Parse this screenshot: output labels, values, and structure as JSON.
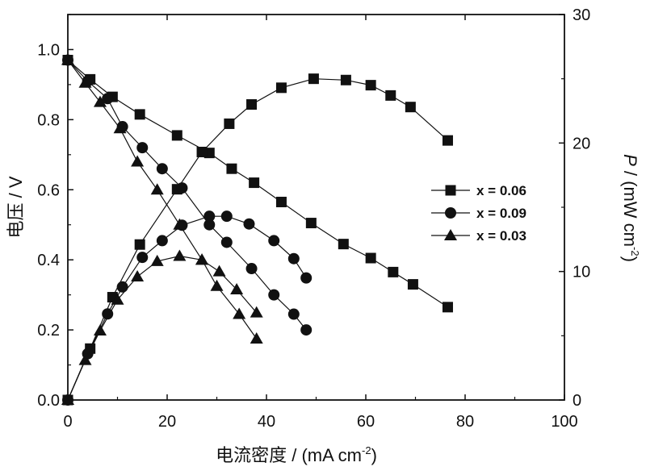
{
  "chart_data": {
    "type": "line",
    "xlabel": "电流密度 / (mA cm",
    "xlabel_sup": "-2",
    "xlabel_suffix": ")",
    "ylabel_left": "电压 / V",
    "ylabel_right_italic": "P",
    "ylabel_right": " / (mW cm",
    "ylabel_right_sup": "-2",
    "ylabel_right_suffix": ")",
    "xlim": [
      0,
      100
    ],
    "ylim_left": [
      0,
      1.1
    ],
    "ylim_right": [
      0,
      30
    ],
    "x_ticks": [
      0,
      20,
      40,
      60,
      80,
      100
    ],
    "x_tick_labels": [
      "0",
      "20",
      "40",
      "60",
      "80",
      "100"
    ],
    "y_left_ticks": [
      0.0,
      0.2,
      0.4,
      0.6,
      0.8,
      1.0
    ],
    "y_left_tick_labels": [
      "0.0",
      "0.2",
      "0.4",
      "0.6",
      "0.8",
      "1.0"
    ],
    "y_right_ticks": [
      0,
      10,
      20,
      30
    ],
    "y_right_tick_labels": [
      "0",
      "10",
      "20",
      "30"
    ],
    "grid": false,
    "legend_position": "right",
    "series": [
      {
        "name": "x = 0.06",
        "marker": "square",
        "voltage": {
          "x": [
            0,
            4.5,
            9,
            14.5,
            22,
            28.5,
            33,
            37.5,
            43,
            49,
            55.5,
            61,
            65.5,
            69.5,
            76.5
          ],
          "y": [
            0.97,
            0.915,
            0.865,
            0.815,
            0.755,
            0.705,
            0.66,
            0.62,
            0.565,
            0.505,
            0.445,
            0.405,
            0.365,
            0.33,
            0.265
          ]
        },
        "power": {
          "x": [
            0,
            4.5,
            9,
            14.5,
            22,
            27,
            32.5,
            37,
            43,
            49.5,
            56,
            61,
            65,
            69,
            76.5
          ],
          "y": [
            0,
            4.0,
            8.0,
            12.1,
            16.4,
            19.3,
            21.5,
            23.0,
            24.3,
            25.0,
            24.9,
            24.5,
            23.7,
            22.8,
            20.2
          ]
        }
      },
      {
        "name": "x = 0.09",
        "marker": "circle",
        "voltage": {
          "x": [
            0,
            4,
            8,
            11,
            15,
            19,
            23,
            28.5,
            32,
            37,
            41.5,
            45.5,
            48
          ],
          "y": [
            0.97,
            0.91,
            0.86,
            0.78,
            0.72,
            0.66,
            0.605,
            0.5,
            0.45,
            0.375,
            0.3,
            0.245,
            0.2
          ]
        },
        "power": {
          "x": [
            0,
            4,
            8,
            11,
            15,
            19,
            23,
            28.5,
            32,
            36.5,
            41.5,
            45.5,
            48
          ],
          "y": [
            0,
            3.6,
            6.7,
            8.8,
            11.1,
            12.4,
            13.6,
            14.3,
            14.3,
            13.7,
            12.4,
            11.0,
            9.5
          ]
        }
      },
      {
        "name": "x = 0.03",
        "marker": "triangle",
        "voltage": {
          "x": [
            0,
            3.5,
            6.5,
            10.5,
            14,
            18,
            22.5,
            27,
            30,
            34.5,
            38
          ],
          "y": [
            0.97,
            0.905,
            0.85,
            0.775,
            0.68,
            0.6,
            0.5,
            0.4,
            0.325,
            0.245,
            0.175
          ]
        },
        "power": {
          "x": [
            0,
            3.5,
            6.5,
            10,
            14,
            18,
            22.5,
            27,
            30.5,
            34,
            38
          ],
          "y": [
            0,
            3.1,
            5.4,
            7.8,
            9.6,
            10.8,
            11.2,
            10.9,
            10.0,
            8.6,
            6.8
          ]
        }
      }
    ]
  }
}
